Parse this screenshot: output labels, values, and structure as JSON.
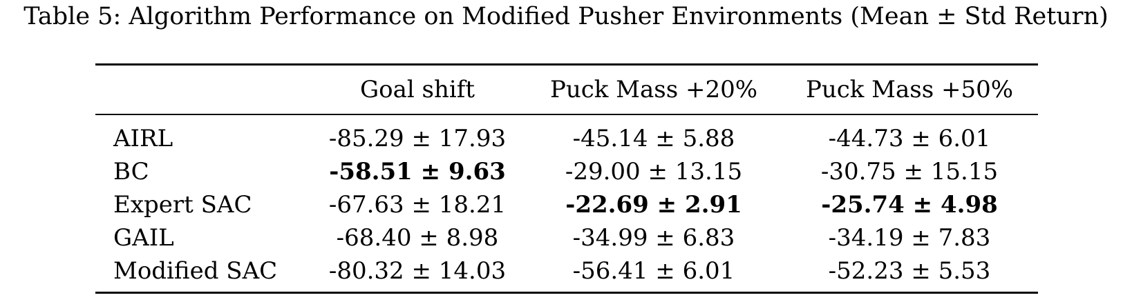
{
  "caption": "Table 5: Algorithm Performance on Modified Pusher Environments (Mean ± Std Return)",
  "columns": [
    "",
    "Goal shift",
    "Puck Mass +20%",
    "Puck Mass +50%"
  ],
  "rows": [
    {
      "label": "AIRL",
      "cells": [
        "-85.29 ± 17.93",
        "-45.14 ± 5.88",
        "-44.73 ± 6.01"
      ],
      "bold": [
        false,
        false,
        false
      ]
    },
    {
      "label": "BC",
      "cells": [
        "-58.51 ± 9.63",
        "-29.00 ± 13.15",
        "-30.75 ± 15.15"
      ],
      "bold": [
        true,
        false,
        false
      ]
    },
    {
      "label": "Expert SAC",
      "cells": [
        "-67.63 ± 18.21",
        "-22.69 ± 2.91",
        "-25.74 ± 4.98"
      ],
      "bold": [
        false,
        true,
        true
      ]
    },
    {
      "label": "GAIL",
      "cells": [
        "-68.40 ± 8.98",
        "-34.99 ± 6.83",
        "-34.19 ± 7.83"
      ],
      "bold": [
        false,
        false,
        false
      ]
    },
    {
      "label": "Modified SAC",
      "cells": [
        "-80.32 ± 14.03",
        "-56.41 ± 6.01",
        "-52.23 ± 5.53"
      ],
      "bold": [
        false,
        false,
        false
      ]
    }
  ]
}
